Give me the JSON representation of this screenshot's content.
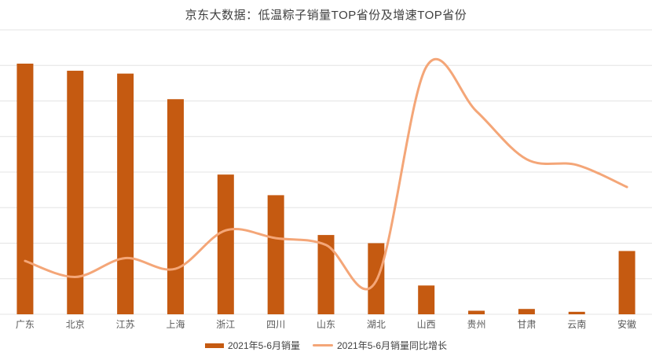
{
  "title": "京东大数据：低温粽子销量TOP省份及增速TOP省份",
  "colors": {
    "bar": "#C55A11",
    "line": "#F4A678",
    "grid": "#E4E4E4",
    "title_text": "#404040",
    "axis_text": "#595959",
    "background": "#FFFFFF"
  },
  "legend": {
    "items": [
      {
        "label": "2021年5-6月销量",
        "marker": "bar",
        "color": "#C55A11"
      },
      {
        "label": "2021年5-6月销量同比增长",
        "marker": "line",
        "color": "#F4A678"
      }
    ]
  },
  "chart_data": {
    "type": "bar",
    "combo": "bar+line",
    "title": "京东大数据：低温粽子销量TOP省份及增速TOP省份",
    "categories": [
      "广东",
      "北京",
      "江苏",
      "上海",
      "浙江",
      "四川",
      "山东",
      "湖北",
      "山西",
      "贵州",
      "甘肃",
      "云南",
      "安徽"
    ],
    "series": [
      {
        "name": "2021年5-6月销量",
        "type": "bar",
        "color": "#C55A11",
        "values": [
          7.05,
          6.85,
          6.77,
          6.05,
          3.93,
          3.35,
          2.23,
          2.0,
          0.81,
          0.1,
          0.15,
          0.07,
          1.78
        ]
      },
      {
        "name": "2021年5-6月销量同比增长",
        "type": "line",
        "color": "#F4A678",
        "values": [
          1.5,
          1.05,
          1.58,
          1.28,
          2.36,
          2.14,
          1.95,
          0.94,
          6.96,
          5.71,
          4.36,
          4.2,
          3.58
        ]
      }
    ],
    "xlabel": "",
    "ylabel": "",
    "ylim": [
      0,
      8
    ],
    "y_tick_labels_visible": false,
    "units_note": "relative units: 1 unit = 1 horizontal gridline interval (no numeric axis labels shown)",
    "grid": "horizontal gridlines only, 9 lines",
    "legend_position": "bottom center"
  }
}
